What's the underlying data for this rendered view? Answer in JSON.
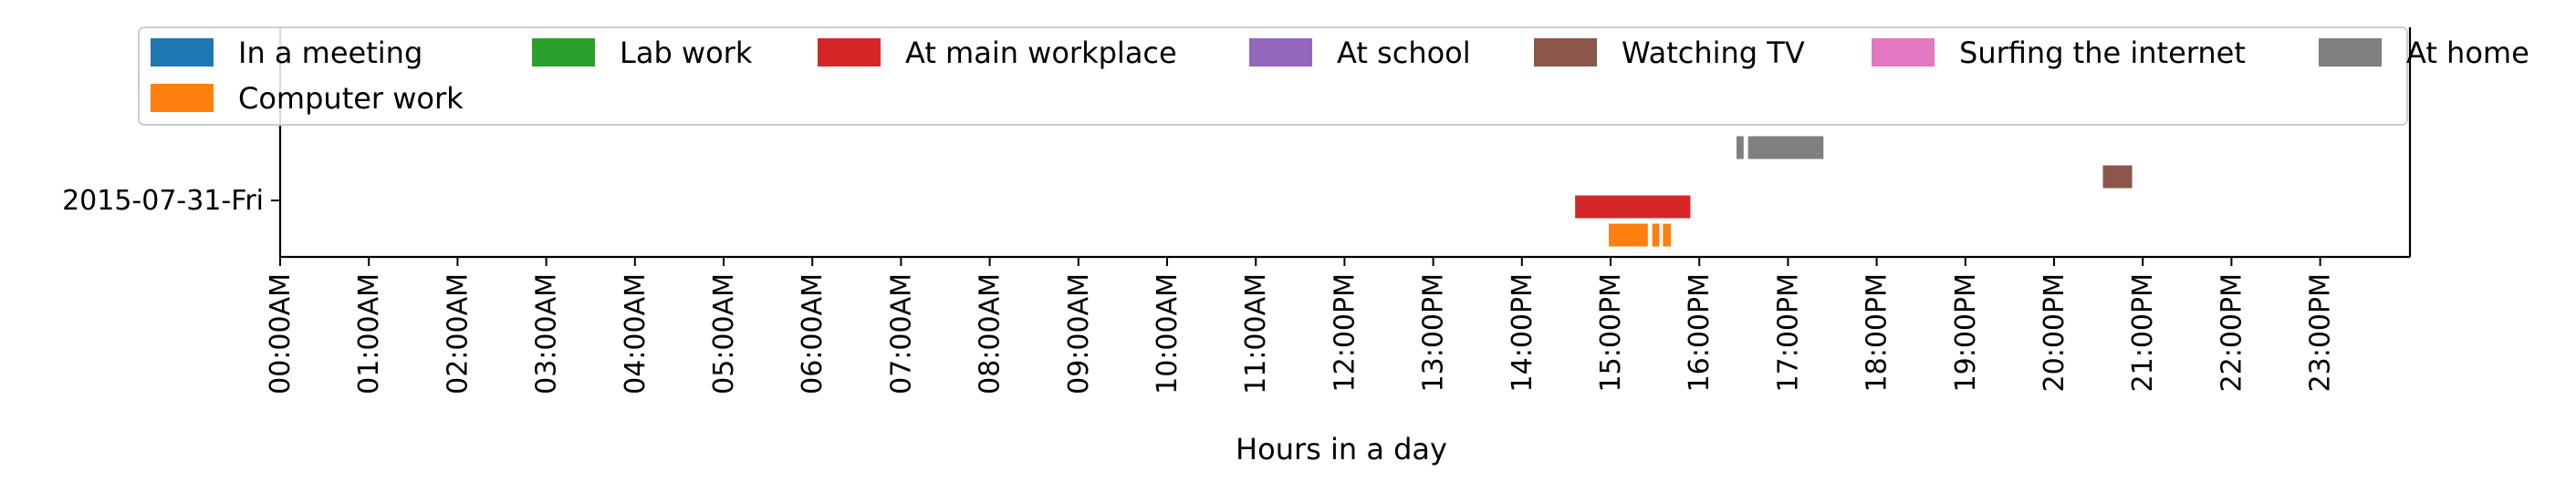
{
  "chart_data": {
    "type": "timeline",
    "title": "",
    "xlabel": "Hours in a day",
    "ylabel": "",
    "xlim": [
      0,
      24
    ],
    "y_categories": [
      "2015-07-31-Fri"
    ],
    "x_ticks": [
      "00:00AM",
      "01:00AM",
      "02:00AM",
      "03:00AM",
      "04:00AM",
      "05:00AM",
      "06:00AM",
      "07:00AM",
      "08:00AM",
      "09:00AM",
      "10:00AM",
      "11:00AM",
      "12:00PM",
      "13:00PM",
      "14:00PM",
      "15:00PM",
      "16:00PM",
      "17:00PM",
      "18:00PM",
      "19:00PM",
      "20:00PM",
      "21:00PM",
      "22:00PM",
      "23:00PM"
    ],
    "legend_position": "top",
    "series": [
      {
        "name": "In a meeting",
        "color": "#1f77b4",
        "lane": 0,
        "segments": []
      },
      {
        "name": "Computer work",
        "color": "#ff7f0e",
        "lane": 0,
        "segments": [
          [
            14.98,
            15.42
          ],
          [
            15.47,
            15.55
          ],
          [
            15.59,
            15.68
          ]
        ]
      },
      {
        "name": "Lab work",
        "color": "#2ca02c",
        "lane": 1,
        "segments": []
      },
      {
        "name": "At main workplace",
        "color": "#d62728",
        "lane": 2,
        "segments": [
          [
            14.6,
            15.9
          ]
        ]
      },
      {
        "name": "At school",
        "color": "#9467bd",
        "lane": 3,
        "segments": []
      },
      {
        "name": "Watching TV",
        "color": "#8c564b",
        "lane": 4,
        "segments": [
          [
            20.55,
            20.88
          ]
        ]
      },
      {
        "name": "Surfing the internet",
        "color": "#e377c2",
        "lane": 5,
        "segments": []
      },
      {
        "name": "At home",
        "color": "#7f7f7f",
        "lane": 6,
        "segments": [
          [
            16.42,
            16.5
          ],
          [
            16.55,
            17.4
          ]
        ]
      }
    ]
  }
}
